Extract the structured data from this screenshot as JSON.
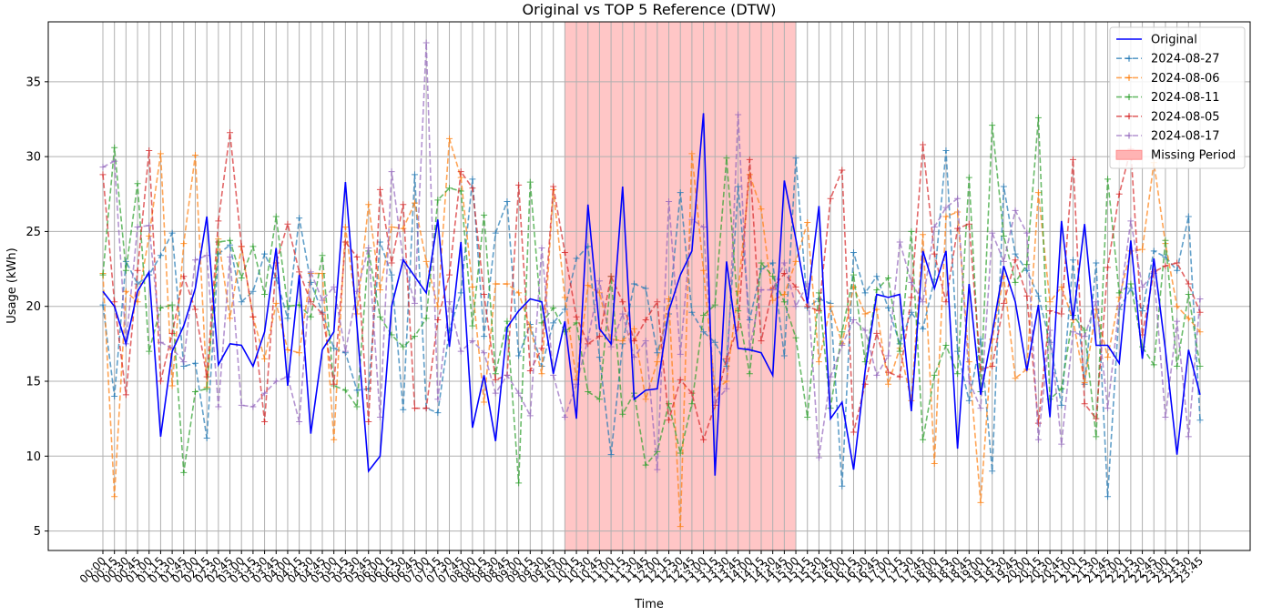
{
  "chart_data": {
    "type": "line",
    "title": "Original vs TOP 5 Reference (DTW)",
    "xlabel": "Time",
    "ylabel": "Usage (kWh)",
    "ylim": [
      3.7,
      39.0
    ],
    "yticks": [
      5,
      10,
      15,
      20,
      25,
      30,
      35
    ],
    "grid": true,
    "legend_position": "top-right",
    "missing_period": {
      "label": "Missing Period",
      "start": "10:00",
      "end": "15:00",
      "color": "#ffb3b3"
    },
    "categories": [
      "00:00",
      "00:15",
      "00:30",
      "00:45",
      "01:00",
      "01:15",
      "01:30",
      "01:45",
      "02:00",
      "02:15",
      "02:30",
      "02:45",
      "03:00",
      "03:15",
      "03:30",
      "03:45",
      "04:00",
      "04:15",
      "04:30",
      "04:45",
      "05:00",
      "05:15",
      "05:30",
      "05:45",
      "06:00",
      "06:15",
      "06:30",
      "06:45",
      "07:00",
      "07:15",
      "07:30",
      "07:45",
      "08:00",
      "08:15",
      "08:30",
      "08:45",
      "09:00",
      "09:15",
      "09:30",
      "09:45",
      "10:00",
      "10:15",
      "10:30",
      "10:45",
      "11:00",
      "11:15",
      "11:30",
      "11:45",
      "12:00",
      "12:15",
      "12:30",
      "12:45",
      "13:00",
      "13:15",
      "13:30",
      "13:45",
      "14:00",
      "14:15",
      "14:30",
      "14:45",
      "15:00",
      "15:15",
      "15:30",
      "15:45",
      "16:00",
      "16:15",
      "16:30",
      "16:45",
      "17:00",
      "17:15",
      "17:30",
      "17:45",
      "18:00",
      "18:15",
      "18:30",
      "18:45",
      "19:00",
      "19:15",
      "19:30",
      "19:45",
      "20:00",
      "20:15",
      "20:30",
      "20:45",
      "21:00",
      "21:15",
      "21:30",
      "21:45",
      "22:00",
      "22:15",
      "22:30",
      "22:45",
      "23:00",
      "23:15",
      "23:30",
      "23:45"
    ],
    "series": [
      {
        "name": "Original",
        "color": "#0000ff",
        "style": "solid",
        "values": [
          21.0,
          20.0,
          17.5,
          21.0,
          22.3,
          11.3,
          17.0,
          18.7,
          21.2,
          26.0,
          16.1,
          17.5,
          17.4,
          16.0,
          18.3,
          23.9,
          14.7,
          22.1,
          11.5,
          17.1,
          18.3,
          28.3,
          18.7,
          9.0,
          10.0,
          20.0,
          23.1,
          22.0,
          20.9,
          25.8,
          17.3,
          24.3,
          11.9,
          15.4,
          11.0,
          18.6,
          19.7,
          20.5,
          20.3,
          15.5,
          19.0,
          12.5,
          26.8,
          18.5,
          17.5,
          28.0,
          13.8,
          14.4,
          14.5,
          19.7,
          22.1,
          23.7,
          32.9,
          8.7,
          23.0,
          17.2,
          17.1,
          16.9,
          15.4,
          28.4,
          24.5,
          20.2,
          26.7,
          12.5,
          13.6,
          9.1,
          15.7,
          20.8,
          20.6,
          20.8,
          13.0,
          23.7,
          21.2,
          23.7,
          10.5,
          21.5,
          14.1,
          18.2,
          22.7,
          20.3,
          15.7,
          20.1,
          12.6,
          25.7,
          19.1,
          25.5,
          17.4,
          17.4,
          16.2,
          24.4,
          16.5,
          23.2,
          17.1,
          10.1,
          17.1,
          14.1
        ]
      },
      {
        "name": "2024-08-27",
        "color": "#1f77b4",
        "style": "dashed",
        "values": [
          20.1,
          14.0,
          23.0,
          21.5,
          22.1,
          23.4,
          24.9,
          16.0,
          16.2,
          11.2,
          23.5,
          24.1,
          20.3,
          21.0,
          23.5,
          21.9,
          19.2,
          25.9,
          21.6,
          19.6,
          17.2,
          16.9,
          14.4,
          14.5,
          24.3,
          22.1,
          13.1,
          28.8,
          13.2,
          12.9,
          18.4,
          20.9,
          28.5,
          18.0,
          24.9,
          27.0,
          16.7,
          18.8,
          16.0,
          18.9,
          19.8,
          23.2,
          24.0,
          16.6,
          10.1,
          17.5,
          21.5,
          21.2,
          16.9,
          19.5,
          27.6,
          19.6,
          18.3,
          17.6,
          16.0,
          28.0,
          19.1,
          22.5,
          22.9,
          16.7,
          29.9,
          19.9,
          20.5,
          20.2,
          8.0,
          23.6,
          20.9,
          22.0,
          19.9,
          17.5,
          19.6,
          18.5,
          21.8,
          30.4,
          17.0,
          13.7,
          17.8,
          9.0,
          28.0,
          23.5,
          22.4,
          20.7,
          17.6,
          13.4,
          23.1,
          14.8,
          22.9,
          7.3,
          19.8,
          21.2,
          19.7,
          23.7,
          23.3,
          22.4,
          26.0,
          12.4
        ]
      },
      {
        "name": "2024-08-06",
        "color": "#ff7f0e",
        "style": "dashed",
        "values": [
          22.2,
          7.3,
          21.0,
          20.3,
          24.7,
          30.2,
          14.7,
          24.2,
          30.1,
          14.6,
          24.5,
          19.2,
          24.0,
          19.3,
          16.5,
          20.2,
          17.1,
          16.9,
          22.2,
          22.2,
          11.1,
          25.3,
          19.5,
          26.8,
          21.1,
          25.3,
          25.2,
          26.9,
          23.0,
          20.0,
          31.2,
          28.6,
          21.3,
          13.6,
          21.5,
          21.5,
          20.9,
          18.6,
          15.5,
          27.8,
          20.6,
          15.1,
          21.4,
          20.9,
          17.8,
          17.7,
          18.5,
          13.8,
          16.3,
          20.5,
          5.3,
          30.2,
          22.4,
          14.4,
          15.0,
          21.0,
          28.8,
          26.5,
          20.4,
          20.8,
          23.0,
          25.6,
          16.3,
          20.0,
          17.5,
          21.3,
          19.5,
          19.8,
          14.8,
          17.2,
          13.7,
          24.8,
          9.5,
          26.0,
          26.3,
          16.3,
          6.9,
          17.8,
          22.0,
          15.2,
          15.8,
          27.6,
          20.3,
          21.3,
          19.1,
          14.9,
          19.8,
          16.6,
          20.6,
          23.7,
          23.8,
          29.6,
          24.2,
          20.0,
          19.2,
          18.3
        ]
      },
      {
        "name": "2024-08-11",
        "color": "#2ca02c",
        "style": "dashed",
        "values": [
          22.1,
          30.6,
          22.4,
          28.2,
          17.0,
          19.9,
          20.1,
          8.9,
          14.3,
          14.5,
          24.3,
          24.4,
          21.9,
          24.0,
          20.8,
          26.0,
          20.0,
          20.1,
          19.3,
          23.4,
          14.7,
          14.4,
          13.3,
          23.7,
          19.3,
          18.1,
          17.3,
          18.0,
          19.2,
          27.1,
          27.9,
          27.7,
          18.7,
          26.1,
          15.5,
          19.0,
          8.2,
          28.3,
          18.9,
          19.9,
          18.3,
          18.9,
          14.3,
          13.8,
          22.0,
          12.8,
          14.2,
          9.4,
          10.3,
          13.5,
          10.2,
          13.5,
          19.4,
          20.1,
          29.9,
          19.7,
          15.5,
          22.9,
          22.0,
          20.3,
          17.9,
          12.6,
          20.9,
          13.2,
          18.3,
          22.1,
          16.3,
          21.1,
          21.9,
          17.0,
          25.0,
          11.1,
          15.4,
          17.4,
          15.5,
          28.6,
          14.3,
          32.1,
          24.7,
          21.6,
          22.8,
          32.6,
          13.8,
          14.5,
          19.4,
          18.4,
          11.3,
          28.5,
          20.9,
          21.5,
          17.3,
          16.1,
          24.4,
          16.0,
          20.8,
          16.0
        ]
      },
      {
        "name": "2024-08-05",
        "color": "#d62728",
        "style": "dashed",
        "values": [
          28.8,
          20.3,
          14.1,
          22.4,
          30.4,
          15.0,
          18.2,
          22.0,
          19.8,
          15.3,
          25.7,
          31.6,
          24.0,
          19.3,
          12.3,
          22.9,
          25.5,
          22.3,
          20.3,
          19.5,
          14.8,
          24.3,
          23.3,
          12.3,
          27.8,
          22.9,
          26.8,
          13.2,
          13.2,
          19.1,
          22.1,
          29.0,
          27.9,
          20.8,
          15.1,
          15.4,
          28.1,
          15.7,
          17.2,
          28.0,
          23.6,
          19.3,
          17.5,
          18.0,
          22.0,
          20.3,
          17.7,
          19.1,
          20.3,
          12.4,
          15.1,
          14.2,
          11.1,
          13.4,
          16.5,
          18.6,
          29.8,
          17.7,
          21.2,
          22.2,
          21.3,
          20.0,
          19.7,
          27.2,
          29.1,
          11.6,
          14.8,
          18.2,
          15.6,
          15.3,
          20.6,
          30.8,
          23.5,
          20.3,
          25.2,
          25.5,
          15.8,
          16.0,
          20.2,
          23.1,
          20.7,
          12.2,
          19.7,
          19.5,
          29.8,
          13.5,
          12.5,
          22.6,
          27.5,
          30.5,
          18.1,
          22.3,
          22.7,
          22.9,
          21.5,
          19.6
        ]
      },
      {
        "name": "2024-08-17",
        "color": "#9467bd",
        "style": "dashed",
        "values": [
          29.3,
          29.7,
          17.5,
          25.3,
          25.4,
          17.6,
          17.2,
          16.3,
          23.1,
          23.4,
          13.3,
          23.3,
          13.4,
          13.3,
          14.2,
          15.0,
          15.3,
          12.3,
          22.3,
          20.4,
          21.3,
          17.0,
          21.0,
          23.9,
          12.6,
          29.0,
          23.1,
          20.2,
          37.6,
          13.8,
          20.3,
          17.0,
          17.7,
          16.9,
          14.2,
          15.4,
          14.2,
          12.7,
          23.9,
          15.4,
          12.6,
          14.8,
          17.8,
          21.7,
          17.3,
          19.5,
          16.6,
          17.7,
          9.1,
          27.0,
          16.8,
          25.8,
          25.3,
          13.6,
          14.5,
          32.8,
          17.2,
          21.1,
          21.1,
          22.9,
          20.0,
          21.5,
          9.9,
          15.3,
          17.4,
          19.1,
          18.4,
          15.4,
          16.7,
          24.3,
          21.6,
          20.3,
          25.3,
          26.6,
          27.2,
          15.0,
          13.2,
          24.9,
          23.0,
          26.4,
          24.9,
          11.1,
          18.4,
          10.8,
          18.3,
          18.0,
          20.3,
          13.2,
          20.0,
          25.7,
          21.3,
          22.2,
          12.6,
          19.0,
          11.3,
          20.5
        ]
      }
    ]
  }
}
